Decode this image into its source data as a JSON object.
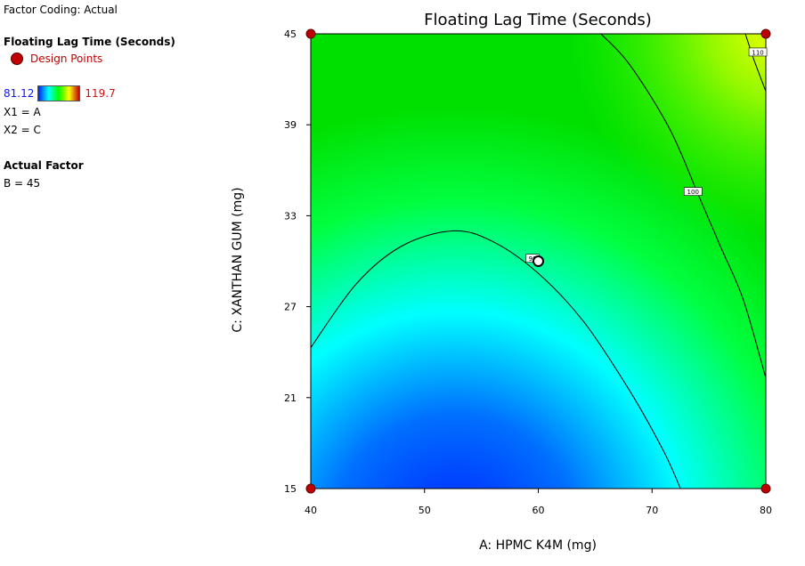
{
  "info": {
    "factor_coding": "Factor Coding: Actual",
    "response_title": "Floating Lag Time (Seconds)",
    "design_points_label": "Design Points",
    "scale_min": "81.12",
    "scale_max": "119.7",
    "x1": "X1 = A",
    "x2": "X2 = C",
    "actual_factor_title": "Actual Factor",
    "actual_factor_value": "B = 45"
  },
  "colors": {
    "design_point": "#c00000",
    "contour_line": "#000000",
    "gradient": [
      "#0020ff",
      "#00ffff",
      "#00ff00",
      "#ffff00",
      "#c00000"
    ]
  },
  "chart_data": {
    "type": "contour",
    "title": "Floating Lag Time (Seconds)",
    "xlabel": "A: HPMC K4M (mg)",
    "ylabel": "C: XANTHAN GUM (mg)",
    "xlim": [
      40,
      80
    ],
    "ylim": [
      15,
      45
    ],
    "xticks": [
      40,
      50,
      60,
      70,
      80
    ],
    "yticks": [
      15,
      21,
      27,
      33,
      39,
      45
    ],
    "color_range": [
      81.12,
      119.7
    ],
    "contours": [
      {
        "level": "90",
        "points": [
          [
            40,
            24.3
          ],
          [
            44,
            28.5
          ],
          [
            48,
            31.0
          ],
          [
            52.5,
            32.0
          ],
          [
            56,
            31.3
          ],
          [
            60,
            29.2
          ],
          [
            64,
            26.0
          ],
          [
            68,
            21.5
          ],
          [
            71,
            17.5
          ],
          [
            72.5,
            15
          ]
        ]
      },
      {
        "level": "100",
        "points": [
          [
            65.5,
            45
          ],
          [
            68,
            43.0
          ],
          [
            71.5,
            38.8
          ],
          [
            74,
            34.5
          ],
          [
            76,
            31.0
          ],
          [
            78,
            27.5
          ],
          [
            80,
            22.3
          ]
        ]
      },
      {
        "level": "110",
        "points": [
          [
            78.2,
            45
          ],
          [
            79,
            43.2
          ],
          [
            80,
            41.2
          ]
        ]
      }
    ],
    "design_points": [
      [
        40,
        45
      ],
      [
        80,
        45
      ],
      [
        40,
        15
      ],
      [
        80,
        15
      ]
    ],
    "center_point": [
      60,
      30
    ]
  }
}
